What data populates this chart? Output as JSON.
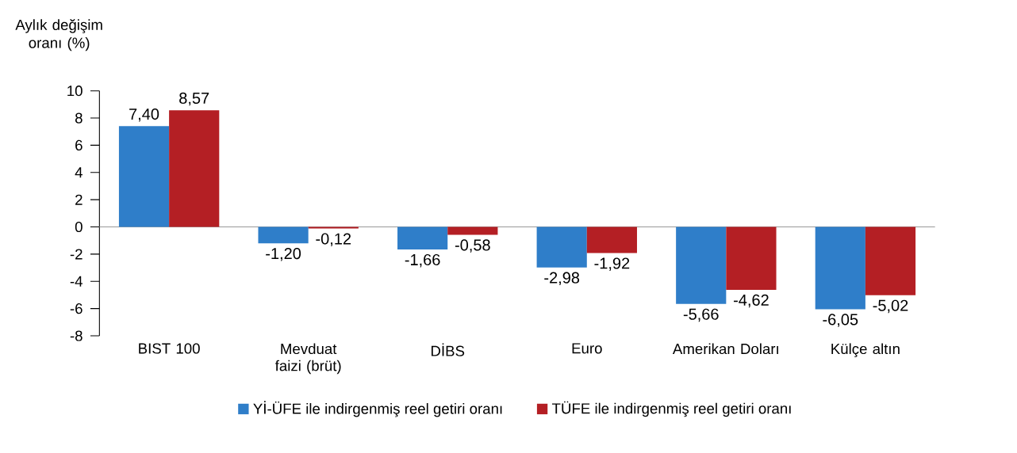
{
  "chart_data": {
    "type": "bar",
    "ylabel": "Aylık değişim oranı (%)",
    "categories": [
      "BIST 100",
      "Mevduat faizi (brüt)",
      "DİBS",
      "Euro",
      "Amerikan Doları",
      "Külçe altın"
    ],
    "series": [
      {
        "name": "Yİ-ÜFE ile indirgenmiş reel getiri oranı",
        "color": "#2f7ec9",
        "values": [
          7.4,
          -1.2,
          -1.66,
          -2.98,
          -5.66,
          -6.05
        ],
        "value_labels": [
          "7,40",
          "-1,20",
          "-1,66",
          "-2,98",
          "-5,66",
          "-6,05"
        ]
      },
      {
        "name": "TÜFE ile indirgenmiş reel getiri oranı",
        "color": "#b41f24",
        "values": [
          8.57,
          -0.12,
          -0.58,
          -1.92,
          -4.62,
          -5.02
        ],
        "value_labels": [
          "8,57",
          "-0,12",
          "-0,58",
          "-1,92",
          "-4,62",
          "-5,02"
        ]
      }
    ],
    "ylim": [
      -8,
      10
    ],
    "yticks": [
      -8,
      -6,
      -4,
      -2,
      0,
      2,
      4,
      6,
      8,
      10
    ],
    "ref_lines": [
      {
        "axis": "y",
        "value": 0,
        "color": "#999999"
      }
    ],
    "legend": "bottom"
  }
}
